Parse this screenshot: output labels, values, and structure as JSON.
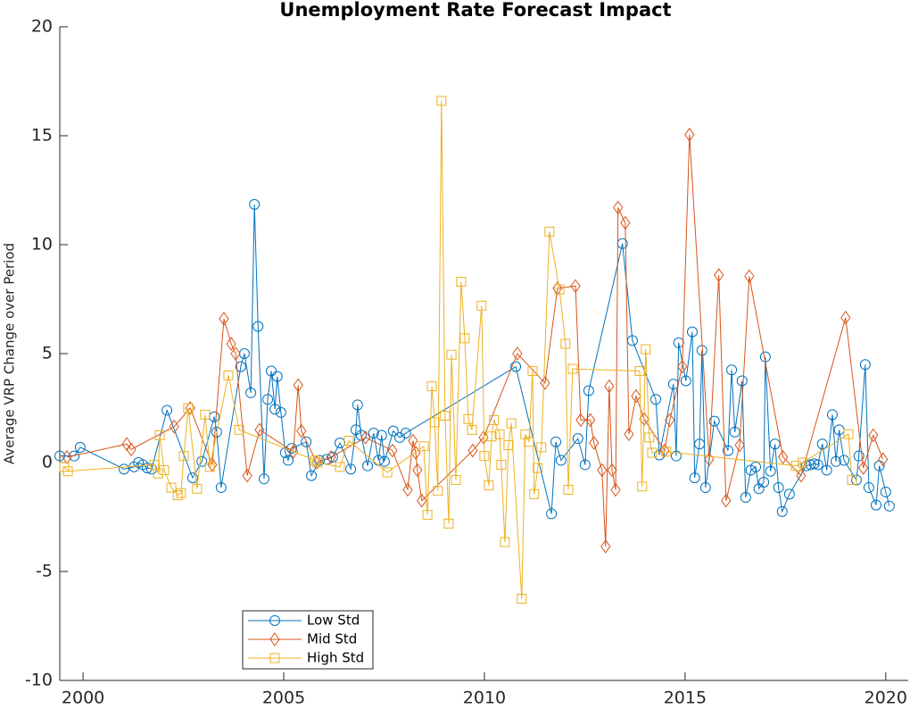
{
  "chart_data": {
    "type": "line",
    "title": "Unemployment Rate Forecast Impact",
    "y_label": "Average VRP Change over Period",
    "xlim": [
      1999.42,
      2020.56
    ],
    "xticks": [
      2000,
      2005,
      2010,
      2015,
      2020
    ],
    "ylim": [
      -10,
      20
    ],
    "yticks": [
      -10,
      -5,
      0,
      5,
      10,
      15,
      20
    ],
    "grid": false,
    "legend": "lower-left",
    "series": [
      {
        "name": "Low Std",
        "color": "#0072BD",
        "marker": "circle",
        "x": [
          1999.42,
          1999.78,
          1999.93,
          2001.02,
          2001.27,
          2001.38,
          2001.49,
          2001.6,
          2001.71,
          2002.09,
          2002.73,
          2002.96,
          2003.27,
          2003.33,
          2003.44,
          2003.93,
          2004.02,
          2004.18,
          2004.27,
          2004.36,
          2004.51,
          2004.6,
          2004.69,
          2004.78,
          2004.84,
          2004.93,
          2005.04,
          2005.11,
          2005.2,
          2005.56,
          2005.69,
          2005.89,
          2006.07,
          2006.22,
          2006.4,
          2006.67,
          2006.8,
          2006.84,
          2006.93,
          2007.09,
          2007.24,
          2007.36,
          2007.44,
          2007.51,
          2007.73,
          2007.89,
          2008.04,
          2010.78,
          2011.67,
          2011.78,
          2011.91,
          2012.33,
          2012.51,
          2012.6,
          2013.44,
          2013.69,
          2014.27,
          2014.36,
          2014.71,
          2014.78,
          2014.84,
          2015.02,
          2015.18,
          2015.24,
          2015.36,
          2015.42,
          2015.51,
          2015.73,
          2016.07,
          2016.16,
          2016.24,
          2016.42,
          2016.51,
          2016.64,
          2016.76,
          2016.84,
          2016.96,
          2017.0,
          2017.13,
          2017.24,
          2017.33,
          2017.42,
          2017.6,
          2018.02,
          2018.13,
          2018.22,
          2018.31,
          2018.42,
          2018.53,
          2018.67,
          2018.76,
          2018.84,
          2018.96,
          2019.27,
          2019.33,
          2019.49,
          2019.58,
          2019.76,
          2019.84,
          2020.0,
          2020.09
        ],
        "values": [
          0.3,
          0.3,
          0.7,
          -0.3,
          -0.2,
          0,
          -0.1,
          -0.25,
          -0.3,
          2.4,
          -0.7,
          0.05,
          2.1,
          1.4,
          -1.15,
          4.4,
          5.0,
          3.2,
          11.85,
          6.25,
          -0.75,
          2.9,
          4.2,
          2.45,
          3.95,
          2.3,
          0.45,
          0.1,
          0.65,
          0.95,
          -0.6,
          0.1,
          0.15,
          0.25,
          0.9,
          -0.3,
          1.5,
          2.65,
          1.25,
          -0.15,
          1.35,
          0.1,
          1.25,
          0.05,
          1.45,
          1.15,
          1.35,
          4.4,
          -2.35,
          0.95,
          0.1,
          1.1,
          -0.1,
          3.3,
          10.05,
          5.6,
          2.9,
          0.35,
          3.6,
          0.3,
          5.5,
          3.75,
          6.0,
          -0.7,
          0.85,
          5.15,
          -1.15,
          1.9,
          0.55,
          4.25,
          1.4,
          3.75,
          -1.6,
          -0.35,
          -0.2,
          -1.2,
          -0.9,
          4.85,
          -0.4,
          0.85,
          -1.15,
          -2.25,
          -1.45,
          -0.15,
          -0.1,
          -0.05,
          -0.1,
          0.85,
          -0.35,
          2.2,
          0.05,
          1.5,
          0.1,
          -0.8,
          0.3,
          4.5,
          -1.15,
          -1.95,
          -0.15,
          -1.35,
          -2.0
        ]
      },
      {
        "name": "Mid Std",
        "color": "#D95319",
        "marker": "diamond",
        "x": [
          1999.6,
          2001.09,
          2001.2,
          2002.27,
          2002.67,
          2003.22,
          2003.51,
          2003.69,
          2003.8,
          2004.09,
          2004.4,
          2005.24,
          2005.36,
          2005.44,
          2005.82,
          2006.18,
          2007.04,
          2007.71,
          2008.09,
          2008.22,
          2008.29,
          2008.33,
          2008.44,
          2009.71,
          2009.98,
          2010.82,
          2011.51,
          2011.82,
          2012.27,
          2012.4,
          2012.64,
          2012.73,
          2012.93,
          2013.02,
          2013.11,
          2013.18,
          2013.27,
          2013.33,
          2013.51,
          2013.6,
          2013.78,
          2013.98,
          2014.49,
          2014.62,
          2014.93,
          2015.11,
          2015.6,
          2015.84,
          2016.02,
          2016.36,
          2016.6,
          2017.44,
          2017.89,
          2019.0,
          2019.44,
          2019.69,
          2019.93
        ],
        "values": [
          0.25,
          0.85,
          0.6,
          1.65,
          2.5,
          -0.1,
          6.6,
          5.45,
          5.0,
          -0.6,
          1.5,
          0.5,
          3.55,
          1.45,
          0,
          0.25,
          1.15,
          0.55,
          -1.25,
          1.0,
          0.45,
          -0.35,
          -1.75,
          0.55,
          1.15,
          5.0,
          3.65,
          8.0,
          8.1,
          1.95,
          1.95,
          0.9,
          -0.35,
          -3.85,
          3.5,
          -0.35,
          -1.25,
          11.7,
          11.0,
          1.3,
          3.05,
          2.0,
          0.55,
          1.95,
          4.4,
          15.05,
          0.15,
          8.6,
          -1.75,
          0.8,
          8.55,
          0.25,
          -0.6,
          6.65,
          -0.25,
          1.25,
          0.15
        ]
      },
      {
        "name": "High Std",
        "color": "#EDB120",
        "marker": "square",
        "x": [
          1999.53,
          1999.62,
          2001.78,
          2001.87,
          2001.91,
          2002.02,
          2002.2,
          2002.36,
          2002.44,
          2002.51,
          2002.62,
          2002.84,
          2003.04,
          2003.16,
          2003.62,
          2003.89,
          2005.78,
          2005.84,
          2006.4,
          2006.62,
          2007.58,
          2008.49,
          2008.58,
          2008.69,
          2008.76,
          2008.84,
          2008.93,
          2009.02,
          2009.11,
          2009.18,
          2009.29,
          2009.42,
          2009.51,
          2009.6,
          2009.69,
          2009.93,
          2010.0,
          2010.11,
          2010.18,
          2010.24,
          2010.38,
          2010.42,
          2010.51,
          2010.6,
          2010.67,
          2010.93,
          2011.02,
          2011.11,
          2011.2,
          2011.24,
          2011.33,
          2011.42,
          2011.62,
          2011.87,
          2012.02,
          2012.09,
          2012.2,
          2013.87,
          2013.93,
          2014.02,
          2014.11,
          2014.18,
          2014.53,
          2017.76,
          2017.93,
          2019.07,
          2019.16
        ],
        "values": [
          -0.2,
          -0.4,
          -0.1,
          -0.5,
          1.25,
          -0.35,
          -1.15,
          -1.5,
          -1.4,
          0.3,
          2.5,
          -1.2,
          2.2,
          -0.2,
          4.0,
          1.5,
          0.1,
          0,
          -0.2,
          1.0,
          -0.45,
          0.75,
          -2.4,
          3.5,
          1.85,
          -1.3,
          16.6,
          2.15,
          -2.8,
          4.95,
          -0.8,
          8.3,
          5.7,
          2.0,
          1.5,
          7.2,
          0.3,
          -1.05,
          1.2,
          1.95,
          1.3,
          -0.1,
          -3.65,
          0.8,
          1.8,
          -6.25,
          1.3,
          0.95,
          4.2,
          -1.45,
          -0.25,
          0.7,
          10.6,
          7.95,
          5.45,
          -1.25,
          4.3,
          4.2,
          -1.1,
          5.2,
          1.15,
          0.45,
          0.5,
          -0.15,
          0,
          1.3,
          -0.8
        ]
      }
    ]
  }
}
